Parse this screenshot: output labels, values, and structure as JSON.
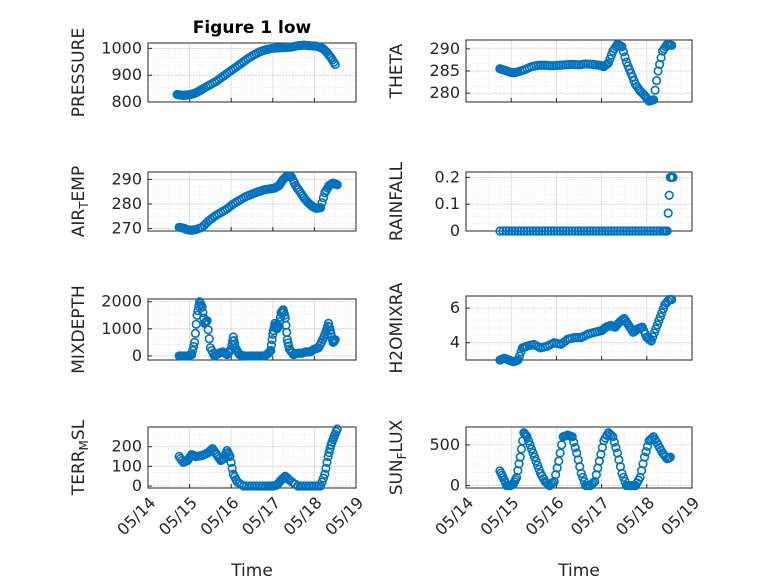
{
  "figure": {
    "title": "Figure 1 low",
    "marker_color": "#0072BD"
  },
  "chart_data": [
    {
      "type": "scatter",
      "id": "pressure",
      "title": "Figure 1 low",
      "ylabel": "PRESSURE",
      "xlabel": "",
      "ylim": [
        800,
        1020
      ],
      "yticks": [
        "800",
        "900",
        "1000"
      ],
      "ytick_values": [
        800,
        900,
        1000
      ],
      "xlim": [
        0,
        5
      ],
      "xticks": [],
      "grid": "on",
      "x": [
        0.7,
        0.78,
        0.86,
        0.94,
        1.02,
        1.12,
        1.22,
        1.35,
        1.5,
        1.65,
        1.8,
        1.95,
        2.1,
        2.25,
        2.4,
        2.55,
        2.7,
        2.85,
        3.0,
        3.15,
        3.3,
        3.45,
        3.6,
        3.75,
        3.9,
        4.05,
        4.2,
        4.3,
        4.4,
        4.5
      ],
      "y": [
        828,
        826,
        825,
        826,
        828,
        832,
        840,
        852,
        865,
        878,
        895,
        912,
        928,
        945,
        962,
        976,
        988,
        996,
        1000,
        1002,
        1003,
        1005,
        1010,
        1012,
        1010,
        1008,
        1000,
        985,
        965,
        940
      ]
    },
    {
      "type": "scatter",
      "id": "theta",
      "ylabel": "THETA",
      "xlabel": "",
      "ylim": [
        278,
        292
      ],
      "yticks": [
        "280",
        "285",
        "290"
      ],
      "ytick_values": [
        280,
        285,
        290
      ],
      "xlim": [
        0,
        5
      ],
      "xticks": [],
      "grid": "on",
      "x": [
        0.75,
        0.85,
        0.95,
        1.05,
        1.15,
        1.3,
        1.45,
        1.6,
        1.75,
        1.9,
        2.05,
        2.2,
        2.35,
        2.5,
        2.65,
        2.8,
        2.95,
        3.05,
        3.15,
        3.25,
        3.35,
        3.45,
        3.55,
        3.65,
        3.75,
        3.85,
        3.95,
        4.05,
        4.15,
        4.25,
        4.35,
        4.45,
        4.55
      ],
      "y": [
        285.5,
        285.2,
        284.8,
        284.6,
        284.8,
        285.3,
        286.0,
        286.3,
        286.3,
        286.2,
        286.3,
        286.4,
        286.5,
        286.4,
        286.6,
        286.5,
        286.3,
        286.0,
        286.8,
        289.5,
        291.0,
        290.5,
        287.0,
        284.5,
        282.0,
        280.5,
        279.5,
        278.2,
        278.5,
        285.0,
        289.5,
        291.0,
        290.8
      ]
    },
    {
      "type": "scatter",
      "id": "air-temp",
      "ylabel": "AIR_TEMP",
      "xlabel": "",
      "ylim": [
        269,
        293
      ],
      "yticks": [
        "270",
        "280",
        "290"
      ],
      "ytick_values": [
        270,
        280,
        290
      ],
      "xlim": [
        0,
        5
      ],
      "xticks": [],
      "grid": "on",
      "x": [
        0.75,
        0.85,
        0.95,
        1.05,
        1.15,
        1.3,
        1.45,
        1.6,
        1.75,
        1.9,
        2.05,
        2.2,
        2.35,
        2.5,
        2.65,
        2.8,
        2.95,
        3.05,
        3.15,
        3.25,
        3.35,
        3.45,
        3.55,
        3.65,
        3.75,
        3.85,
        3.95,
        4.05,
        4.15,
        4.25,
        4.35,
        4.45,
        4.55
      ],
      "y": [
        270.5,
        270.2,
        269.5,
        269.3,
        269.6,
        270.5,
        273.0,
        275.0,
        276.5,
        278.0,
        280.0,
        281.5,
        283.0,
        284.0,
        285.0,
        285.8,
        286.2,
        286.5,
        287.5,
        290.0,
        291.5,
        291.0,
        287.5,
        285.0,
        282.5,
        280.5,
        279.0,
        278.2,
        278.5,
        284.5,
        287.5,
        288.5,
        287.8
      ]
    },
    {
      "type": "scatter",
      "id": "rainfall",
      "ylabel": "RAINFALL",
      "xlabel": "",
      "ylim": [
        0,
        0.22
      ],
      "yticks": [
        "0",
        "0.1",
        "0.2"
      ],
      "ytick_values": [
        0,
        0.1,
        0.2
      ],
      "xlim": [
        0,
        5
      ],
      "xticks": [],
      "grid": "on",
      "x": [
        0.75,
        0.95,
        1.15,
        1.35,
        1.55,
        1.75,
        1.95,
        2.15,
        2.35,
        2.55,
        2.75,
        2.95,
        3.15,
        3.35,
        3.55,
        3.75,
        3.95,
        4.15,
        4.35,
        4.45,
        4.52,
        4.58
      ],
      "y": [
        0,
        0,
        0,
        0,
        0,
        0,
        0,
        0,
        0,
        0,
        0,
        0,
        0,
        0,
        0,
        0,
        0,
        0,
        0,
        0,
        0.2,
        0.2
      ]
    },
    {
      "type": "scatter",
      "id": "mixdepth",
      "ylabel": "MIXDEPTH",
      "xlabel": "",
      "ylim": [
        -150,
        2100
      ],
      "yticks": [
        "0",
        "1000",
        "2000"
      ],
      "ytick_values": [
        0,
        1000,
        2000
      ],
      "xlim": [
        0,
        5
      ],
      "xticks": [],
      "grid": "on",
      "x": [
        0.75,
        0.85,
        0.95,
        1.05,
        1.12,
        1.18,
        1.24,
        1.3,
        1.36,
        1.42,
        1.5,
        1.6,
        1.7,
        1.8,
        1.9,
        2.0,
        2.05,
        2.1,
        2.2,
        2.3,
        2.4,
        2.5,
        2.6,
        2.7,
        2.8,
        2.9,
        2.95,
        3.0,
        3.05,
        3.1,
        3.15,
        3.2,
        3.25,
        3.3,
        3.35,
        3.4,
        3.5,
        3.6,
        3.7,
        3.8,
        3.9,
        4.0,
        4.1,
        4.2,
        4.28,
        4.34,
        4.4,
        4.45,
        4.5
      ],
      "y": [
        0,
        0,
        0,
        50,
        500,
        1500,
        2000,
        1800,
        1200,
        1300,
        300,
        0,
        100,
        150,
        50,
        250,
        700,
        300,
        50,
        0,
        0,
        0,
        0,
        0,
        0,
        100,
        200,
        800,
        1200,
        1000,
        1100,
        1600,
        1700,
        1400,
        600,
        250,
        50,
        100,
        100,
        150,
        150,
        250,
        300,
        600,
        900,
        1200,
        800,
        500,
        600
      ]
    },
    {
      "type": "scatter",
      "id": "h2omixra",
      "ylabel": "H2OMIXRA",
      "xlabel": "",
      "ylim": [
        3,
        6.7
      ],
      "yticks": [
        "4",
        "6"
      ],
      "ytick_values": [
        4,
        6
      ],
      "xlim": [
        0,
        5
      ],
      "xticks": [],
      "grid": "on",
      "x": [
        0.75,
        0.85,
        0.95,
        1.05,
        1.15,
        1.25,
        1.35,
        1.5,
        1.65,
        1.8,
        1.95,
        2.1,
        2.25,
        2.4,
        2.55,
        2.7,
        2.85,
        3.0,
        3.1,
        3.2,
        3.3,
        3.4,
        3.5,
        3.6,
        3.7,
        3.8,
        3.9,
        4.0,
        4.1,
        4.2,
        4.3,
        4.4,
        4.5,
        4.55
      ],
      "y": [
        3.0,
        3.1,
        3.0,
        2.9,
        3.0,
        3.7,
        3.8,
        3.9,
        3.7,
        3.8,
        4.0,
        3.9,
        4.2,
        4.3,
        4.3,
        4.5,
        4.6,
        4.7,
        4.9,
        5.0,
        4.9,
        5.2,
        5.4,
        5.0,
        4.6,
        4.8,
        4.9,
        4.3,
        4.1,
        4.8,
        5.5,
        6.2,
        6.5,
        6.5
      ]
    },
    {
      "type": "scatter",
      "id": "terr-msl",
      "ylabel": "TERR_MSL",
      "xlabel": "Time",
      "ylim": [
        -10,
        300
      ],
      "yticks": [
        "0",
        "100",
        "200"
      ],
      "ytick_values": [
        0,
        100,
        200
      ],
      "xlim": [
        0,
        5
      ],
      "xticks": [
        "05/14",
        "05/15",
        "05/16",
        "05/17",
        "05/18",
        "05/19"
      ],
      "xtick_values": [
        0,
        1,
        2,
        3,
        4,
        5
      ],
      "grid": "on",
      "x": [
        0.75,
        0.85,
        0.95,
        1.05,
        1.15,
        1.3,
        1.45,
        1.55,
        1.65,
        1.75,
        1.82,
        1.9,
        1.97,
        2.05,
        2.15,
        2.3,
        2.5,
        2.7,
        2.9,
        3.0,
        3.1,
        3.2,
        3.3,
        3.4,
        3.6,
        3.8,
        4.0,
        4.15,
        4.25,
        4.33,
        4.4,
        4.47,
        4.55
      ],
      "y": [
        150,
        120,
        130,
        160,
        150,
        155,
        170,
        190,
        160,
        130,
        140,
        180,
        150,
        60,
        20,
        0,
        0,
        0,
        0,
        0,
        5,
        30,
        50,
        30,
        0,
        0,
        0,
        0,
        60,
        150,
        210,
        250,
        290
      ]
    },
    {
      "type": "scatter",
      "id": "sun-flux",
      "ylabel": "SUN_FLUX",
      "xlabel": "Time",
      "ylim": [
        -30,
        720
      ],
      "yticks": [
        "0",
        "500"
      ],
      "ytick_values": [
        0,
        500
      ],
      "xlim": [
        0,
        5
      ],
      "xticks": [
        "05/14",
        "05/15",
        "05/16",
        "05/17",
        "05/18",
        "05/19"
      ],
      "xtick_values": [
        0,
        1,
        2,
        3,
        4,
        5
      ],
      "grid": "on",
      "x": [
        0.75,
        0.82,
        0.9,
        0.98,
        1.05,
        1.12,
        1.2,
        1.28,
        1.35,
        1.45,
        1.55,
        1.65,
        1.75,
        1.85,
        1.95,
        2.05,
        2.15,
        2.25,
        2.35,
        2.45,
        2.55,
        2.65,
        2.75,
        2.85,
        2.95,
        3.05,
        3.15,
        3.25,
        3.35,
        3.45,
        3.55,
        3.65,
        3.75,
        3.85,
        3.95,
        4.05,
        4.15,
        4.25,
        4.35,
        4.45,
        4.52
      ],
      "y": [
        180,
        100,
        0,
        0,
        20,
        100,
        350,
        650,
        600,
        450,
        300,
        150,
        50,
        0,
        50,
        300,
        600,
        620,
        600,
        400,
        150,
        0,
        0,
        50,
        300,
        550,
        650,
        600,
        400,
        150,
        0,
        0,
        0,
        100,
        350,
        550,
        600,
        500,
        400,
        330,
        350
      ]
    }
  ]
}
